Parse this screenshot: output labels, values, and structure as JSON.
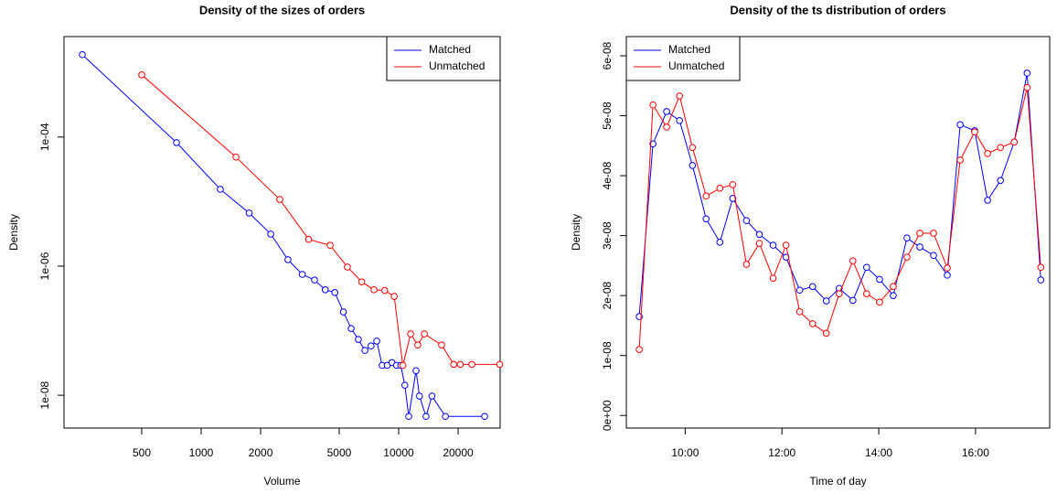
{
  "chart_data": [
    {
      "type": "line",
      "title": "Density of the sizes of orders",
      "x_label": "Volume",
      "y_label": "Density",
      "x_log": true,
      "y_log": true,
      "xlim": [
        202,
        32660
      ],
      "ylim": [
        3.1e-09,
        0.0036
      ],
      "xticks": [
        500,
        1000,
        2000,
        5000,
        10000,
        20000
      ],
      "yticks": [
        {
          "value": 0.0001,
          "label": "1e-04"
        },
        {
          "value": 1e-06,
          "label": "1e-06"
        },
        {
          "value": 1e-08,
          "label": "1e-08"
        }
      ],
      "legend": "topright",
      "series": [
        {
          "name": "Matched",
          "color": "#0000ff",
          "x": [
            250,
            750,
            1250,
            1750,
            2250,
            2750,
            3250,
            3750,
            4250,
            4750,
            5250,
            5750,
            6250,
            6750,
            7250,
            7750,
            8250,
            8750,
            9250,
            9750,
            10250,
            10750,
            11250,
            12250,
            12750,
            13750,
            14750,
            17250,
            27250
          ],
          "values": [
            0.00189,
            8.2e-05,
            1.55e-05,
            6.65e-06,
            3.14e-06,
            1.26e-06,
            7.45e-07,
            6.1e-07,
            4.3e-07,
            3.9e-07,
            1.95e-07,
            1.08e-07,
            7.3e-08,
            4.95e-08,
            5.8e-08,
            6.9e-08,
            2.9e-08,
            2.9e-08,
            3.2e-08,
            2.9e-08,
            2.9e-08,
            1.43e-08,
            4.7e-09,
            2.4e-08,
            9.7e-09,
            4.7e-09,
            9.7e-09,
            4.7e-09,
            4.7e-09
          ]
        },
        {
          "name": "Unmatched",
          "color": "#ff0000",
          "x": [
            500,
            1500,
            2500,
            3500,
            4500,
            5500,
            6500,
            7500,
            8500,
            9500,
            10500,
            11500,
            12500,
            13500,
            16500,
            19000,
            20500,
            23500,
            32500
          ],
          "values": [
            0.00092,
            4.9e-05,
            1.08e-05,
            2.6e-06,
            2.1e-06,
            9.7e-07,
            5.7e-07,
            4.3e-07,
            4.2e-07,
            3.4e-07,
            2.9e-08,
            8.9e-08,
            6e-08,
            8.9e-08,
            6e-08,
            3e-08,
            3e-08,
            3e-08,
            3e-08
          ]
        }
      ]
    },
    {
      "type": "line",
      "title": "Density of the ts distribution of orders",
      "x_label": "Time of day",
      "y_label": "Density",
      "xlim": [
        "08:47",
        "17:32"
      ],
      "ylim": [
        -2.1e-09,
        6.32e-08
      ],
      "xticks": [
        "10:00",
        "12:00",
        "14:00",
        "16:00"
      ],
      "yticks": [
        {
          "value": 0,
          "label": "0e+00"
        },
        {
          "value": 1e-08,
          "label": "1e-08"
        },
        {
          "value": 2e-08,
          "label": "2e-08"
        },
        {
          "value": 3e-08,
          "label": "3e-08"
        },
        {
          "value": 4e-08,
          "label": "4e-08"
        },
        {
          "value": 5e-08,
          "label": "5e-08"
        },
        {
          "value": 6e-08,
          "label": "6e-08"
        }
      ],
      "legend": "topleft",
      "x": [
        "09:03",
        "09:20",
        "09:37",
        "09:53",
        "10:09",
        "10:26",
        "10:43",
        "10:59",
        "11:16",
        "11:32",
        "11:49",
        "12:05",
        "12:22",
        "12:38",
        "12:55",
        "13:11",
        "13:28",
        "13:45",
        "14:01",
        "14:18",
        "14:35",
        "14:51",
        "15:08",
        "15:25",
        "15:41",
        "15:59",
        "16:15",
        "16:31",
        "16:48",
        "17:04",
        "17:21"
      ],
      "series": [
        {
          "name": "Matched",
          "color": "#0000ff",
          "values": [
            1.65e-08,
            4.53e-08,
            5.07e-08,
            4.92e-08,
            4.17e-08,
            3.28e-08,
            2.89e-08,
            3.62e-08,
            3.25e-08,
            3.02e-08,
            2.84e-08,
            2.64e-08,
            2.09e-08,
            2.15e-08,
            1.91e-08,
            2.12e-08,
            1.92e-08,
            2.47e-08,
            2.27e-08,
            2e-08,
            2.96e-08,
            2.81e-08,
            2.67e-08,
            2.34e-08,
            4.85e-08,
            4.75e-08,
            3.59e-08,
            3.92e-08,
            4.56e-08,
            5.71e-08,
            2.26e-08
          ]
        },
        {
          "name": "Unmatched",
          "color": "#ff0000",
          "values": [
            1.1e-08,
            5.18e-08,
            4.81e-08,
            5.33e-08,
            4.47e-08,
            3.66e-08,
            3.79e-08,
            3.85e-08,
            2.52e-08,
            2.87e-08,
            2.29e-08,
            2.84e-08,
            1.73e-08,
            1.53e-08,
            1.37e-08,
            2.03e-08,
            2.58e-08,
            2.03e-08,
            1.89e-08,
            2.15e-08,
            2.64e-08,
            3.04e-08,
            3.04e-08,
            2.46e-08,
            4.26e-08,
            4.73e-08,
            4.37e-08,
            4.47e-08,
            4.56e-08,
            5.47e-08,
            2.47e-08
          ]
        }
      ]
    }
  ]
}
